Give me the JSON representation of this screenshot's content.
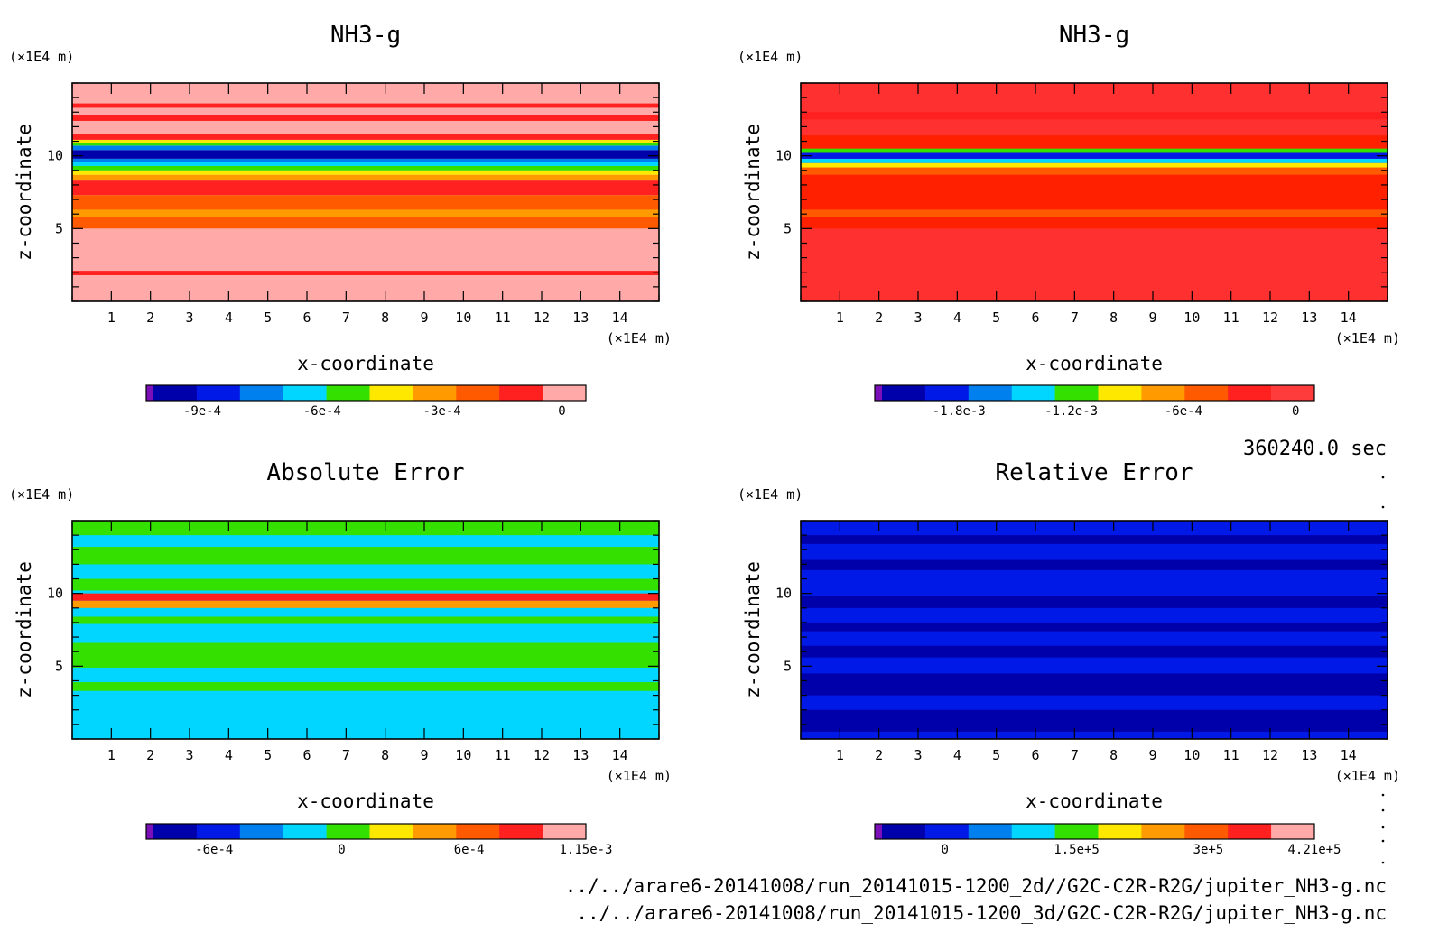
{
  "chart_data": [
    {
      "type": "heatmap",
      "title": "NH3-g",
      "xlabel": "x-coordinate",
      "ylabel": "z-coordinate",
      "x_unit": "(×1E4 m)",
      "y_unit": "(×1E4 m)",
      "x_ticks": [
        "1",
        "2",
        "3",
        "4",
        "5",
        "6",
        "7",
        "8",
        "9",
        "10",
        "11",
        "12",
        "13",
        "14"
      ],
      "y_ticks": [
        "5",
        "10"
      ],
      "xlim": [
        0,
        15
      ],
      "ylim": [
        0,
        15
      ],
      "colorbar": {
        "labels": [
          {
            "v": -0.0009,
            "text": "-9e-4"
          },
          {
            "v": -0.0006,
            "text": "-6e-4"
          },
          {
            "v": -0.0003,
            "text": "-3e-4"
          },
          {
            "v": 0,
            "text": "0"
          }
        ],
        "range": [
          -0.00104,
          6e-05
        ],
        "colors": [
          "#7b10b8",
          "#0000aa",
          "#0019e6",
          "#0080ee",
          "#00d6ff",
          "#33e000",
          "#ffe800",
          "#ff9b00",
          "#ff5a00",
          "#ff2020",
          "#ffa9a9"
        ]
      },
      "bands": [
        {
          "z0": 0,
          "z1": 5.0,
          "color": "#ffa9a9"
        },
        {
          "z0": 1.8,
          "z1": 2.1,
          "color": "#ff2020"
        },
        {
          "z0": 0.0,
          "z1": 1.6,
          "color": "#ffa9a9"
        },
        {
          "z0": 5.0,
          "z1": 7.3,
          "color": "#ff5a00"
        },
        {
          "z0": 5.8,
          "z1": 6.3,
          "color": "#ff9b00"
        },
        {
          "z0": 7.3,
          "z1": 8.3,
          "color": "#ff2020"
        },
        {
          "z0": 8.3,
          "z1": 8.7,
          "color": "#ff9b00"
        },
        {
          "z0": 8.7,
          "z1": 9.0,
          "color": "#ffe800"
        },
        {
          "z0": 9.0,
          "z1": 9.3,
          "color": "#33e000"
        },
        {
          "z0": 9.3,
          "z1": 9.6,
          "color": "#00d6ff"
        },
        {
          "z0": 9.6,
          "z1": 9.8,
          "color": "#0080ee"
        },
        {
          "z0": 9.8,
          "z1": 10.4,
          "color": "#0000aa"
        },
        {
          "z0": 10.4,
          "z1": 10.7,
          "color": "#0080ee"
        },
        {
          "z0": 10.7,
          "z1": 10.9,
          "color": "#33e000"
        },
        {
          "z0": 10.9,
          "z1": 11.1,
          "color": "#ffe800"
        },
        {
          "z0": 11.1,
          "z1": 11.5,
          "color": "#ff2020"
        },
        {
          "z0": 11.5,
          "z1": 15.0,
          "color": "#ffa9a9"
        },
        {
          "z0": 12.4,
          "z1": 12.8,
          "color": "#ff2020"
        },
        {
          "z0": 13.3,
          "z1": 13.6,
          "color": "#ff2020"
        }
      ]
    },
    {
      "type": "heatmap",
      "title": "NH3-g",
      "xlabel": "x-coordinate",
      "ylabel": "z-coordinate",
      "x_unit": "(×1E4 m)",
      "y_unit": "(×1E4 m)",
      "x_ticks": [
        "1",
        "2",
        "3",
        "4",
        "5",
        "6",
        "7",
        "8",
        "9",
        "10",
        "11",
        "12",
        "13",
        "14"
      ],
      "y_ticks": [
        "5",
        "10"
      ],
      "xlim": [
        0,
        15
      ],
      "ylim": [
        0,
        15
      ],
      "colorbar": {
        "labels": [
          {
            "v": -0.0018,
            "text": "-1.8e-3"
          },
          {
            "v": -0.0012,
            "text": "-1.2e-3"
          },
          {
            "v": -0.0006,
            "text": "-6e-4"
          },
          {
            "v": 0,
            "text": "0"
          }
        ],
        "range": [
          -0.00225,
          0.0001
        ],
        "colors": [
          "#7b10b8",
          "#0000aa",
          "#0019e6",
          "#0080ee",
          "#00d6ff",
          "#33e000",
          "#ffe800",
          "#ff9b00",
          "#ff5a00",
          "#ff2020",
          "#ff3c3c"
        ]
      },
      "bands": [
        {
          "z0": 0,
          "z1": 15.0,
          "color": "#ff3030"
        },
        {
          "z0": 5.0,
          "z1": 8.7,
          "color": "#ff2000"
        },
        {
          "z0": 5.8,
          "z1": 6.3,
          "color": "#ff5a00"
        },
        {
          "z0": 8.7,
          "z1": 9.2,
          "color": "#ff5a00"
        },
        {
          "z0": 9.2,
          "z1": 9.5,
          "color": "#ffe800"
        },
        {
          "z0": 9.5,
          "z1": 9.8,
          "color": "#00d6ff"
        },
        {
          "z0": 9.8,
          "z1": 10.2,
          "color": "#0019e6"
        },
        {
          "z0": 10.2,
          "z1": 10.5,
          "color": "#33e000"
        },
        {
          "z0": 10.5,
          "z1": 11.4,
          "color": "#ff2000"
        },
        {
          "z0": 12.5,
          "z1": 13.0,
          "color": "#ff2020"
        }
      ]
    },
    {
      "type": "heatmap",
      "title": "Absolute Error",
      "xlabel": "x-coordinate",
      "ylabel": "z-coordinate",
      "x_unit": "(×1E4 m)",
      "y_unit": "(×1E4 m)",
      "x_ticks": [
        "1",
        "2",
        "3",
        "4",
        "5",
        "6",
        "7",
        "8",
        "9",
        "10",
        "11",
        "12",
        "13",
        "14"
      ],
      "y_ticks": [
        "5",
        "10"
      ],
      "xlim": [
        0,
        15
      ],
      "ylim": [
        0,
        15
      ],
      "colorbar": {
        "labels": [
          {
            "v": -0.0006,
            "text": "-6e-4"
          },
          {
            "v": 0,
            "text": "0"
          },
          {
            "v": 0.0006,
            "text": "6e-4"
          },
          {
            "v": 0.00115,
            "text": "1.15e-3"
          }
        ],
        "range": [
          -0.00092,
          0.00115
        ],
        "colors": [
          "#7b10b8",
          "#0000aa",
          "#0019e6",
          "#0080ee",
          "#00d6ff",
          "#33e000",
          "#ffe800",
          "#ff9b00",
          "#ff5a00",
          "#ff2020",
          "#ffa9a9"
        ]
      },
      "bands": [
        {
          "z0": 0,
          "z1": 15.0,
          "color": "#00d6ff"
        },
        {
          "z0": 4.9,
          "z1": 6.6,
          "color": "#33e000"
        },
        {
          "z0": 3.3,
          "z1": 3.9,
          "color": "#33e000"
        },
        {
          "z0": 7.9,
          "z1": 8.4,
          "color": "#33e000"
        },
        {
          "z0": 9.0,
          "z1": 9.5,
          "color": "#ff9b00"
        },
        {
          "z0": 9.5,
          "z1": 10.0,
          "color": "#ff2020"
        },
        {
          "z0": 10.2,
          "z1": 11.0,
          "color": "#33e000"
        },
        {
          "z0": 12.0,
          "z1": 13.2,
          "color": "#33e000"
        },
        {
          "z0": 14.0,
          "z1": 15.0,
          "color": "#33e000"
        }
      ]
    },
    {
      "type": "heatmap",
      "title": "Relative Error",
      "xlabel": "x-coordinate",
      "ylabel": "z-coordinate",
      "x_unit": "(×1E4 m)",
      "y_unit": "(×1E4 m)",
      "x_ticks": [
        "1",
        "2",
        "3",
        "4",
        "5",
        "6",
        "7",
        "8",
        "9",
        "10",
        "11",
        "12",
        "13",
        "14"
      ],
      "y_ticks": [
        "5",
        "10"
      ],
      "xlim": [
        0,
        15
      ],
      "ylim": [
        0,
        15
      ],
      "colorbar": {
        "labels": [
          {
            "v": 0,
            "text": "0"
          },
          {
            "v": 150000,
            "text": "1.5e+5"
          },
          {
            "v": 300000,
            "text": "3e+5"
          },
          {
            "v": 421000,
            "text": "4.21e+5"
          }
        ],
        "range": [
          -80000,
          421000
        ],
        "colors": [
          "#7b10b8",
          "#0000aa",
          "#0019e6",
          "#0080ee",
          "#00d6ff",
          "#33e000",
          "#ffe800",
          "#ff9b00",
          "#ff5a00",
          "#ff2020",
          "#ffa9a9"
        ]
      },
      "bands": [
        {
          "z0": 0,
          "z1": 15.0,
          "color": "#0019e6"
        },
        {
          "z0": 0.5,
          "z1": 2.0,
          "color": "#0000aa"
        },
        {
          "z0": 3.0,
          "z1": 4.5,
          "color": "#0000aa"
        },
        {
          "z0": 5.6,
          "z1": 6.4,
          "color": "#0000aa"
        },
        {
          "z0": 7.4,
          "z1": 8.0,
          "color": "#0000aa"
        },
        {
          "z0": 9.0,
          "z1": 9.8,
          "color": "#0000aa"
        },
        {
          "z0": 11.6,
          "z1": 12.3,
          "color": "#0000aa"
        },
        {
          "z0": 13.4,
          "z1": 14.0,
          "color": "#0000aa"
        }
      ]
    }
  ],
  "footer": {
    "time": "360240.0 sec",
    "file1": "../../arare6-20141008/run_20141015-1200_2d//G2C-C2R-R2G/jupiter_NH3-g.nc",
    "file2": "../../arare6-20141008/run_20141015-1200_3d/G2C-C2R-R2G/jupiter_NH3-g.nc"
  }
}
